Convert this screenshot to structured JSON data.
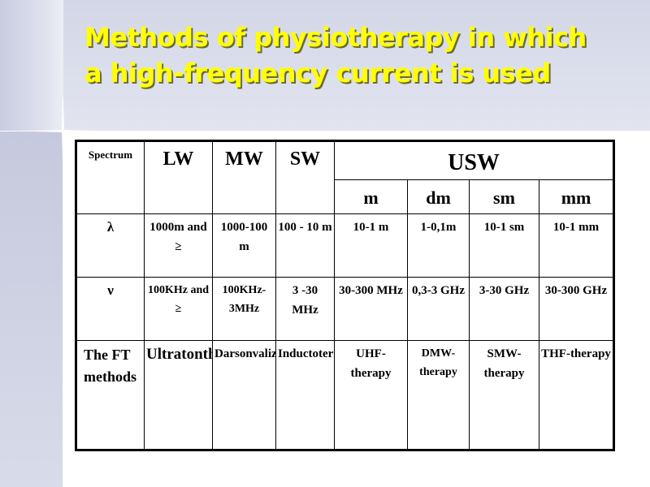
{
  "slide": {
    "title_line1": "Methods of physiotherapy in which",
    "title_line2": "a high-frequency current is used"
  },
  "table": {
    "header": {
      "spectrum": "Spectrum",
      "lw": "LW",
      "mw": "MW",
      "sw": "SW",
      "usw": "USW",
      "usw_sub": [
        "m",
        "dm",
        "sm",
        "mm"
      ]
    },
    "rows": [
      {
        "label": "λ",
        "cells": [
          "1000m and ≥",
          "1000-100 m",
          "100 - 10 m",
          "10-1 m",
          "1-0,1m",
          "10-1 sm",
          "10-1 mm"
        ]
      },
      {
        "label": "ν",
        "cells": [
          "100KHz and ≥",
          "100KHz-3MHz",
          "3 -30 MHz",
          "30-300 MHz",
          "0,3-3 GHz",
          "3-30 GHz",
          "30-300 GHz"
        ]
      },
      {
        "label": "The FT methods",
        "cells": [
          "Ultratontherapy",
          "Darsonvalization",
          "Inductotermia",
          "UHF-therapy",
          "DMW-therapy",
          "SMW-therapy",
          "THF-therapy"
        ]
      }
    ]
  }
}
